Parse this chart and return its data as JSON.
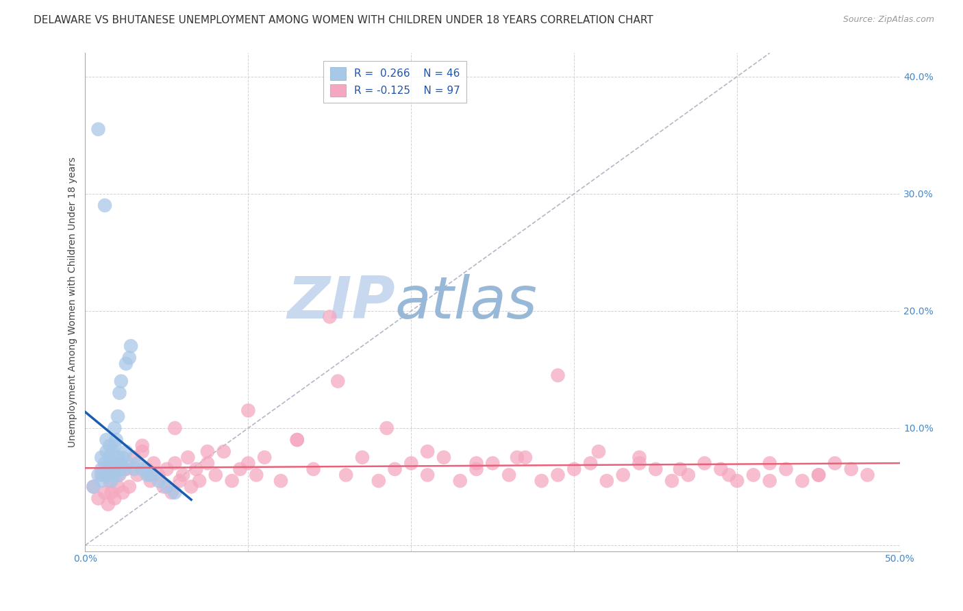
{
  "title": "DELAWARE VS BHUTANESE UNEMPLOYMENT AMONG WOMEN WITH CHILDREN UNDER 18 YEARS CORRELATION CHART",
  "source": "Source: ZipAtlas.com",
  "ylabel": "Unemployment Among Women with Children Under 18 years",
  "xlim": [
    0.0,
    0.5
  ],
  "ylim": [
    -0.005,
    0.42
  ],
  "xticks": [
    0.0,
    0.1,
    0.2,
    0.3,
    0.4,
    0.5
  ],
  "xtick_labels": [
    "0.0%",
    "",
    "",
    "",
    "",
    "50.0%"
  ],
  "yticks": [
    0.0,
    0.1,
    0.2,
    0.3,
    0.4
  ],
  "ytick_labels": [
    "",
    "10.0%",
    "20.0%",
    "30.0%",
    "40.0%"
  ],
  "delaware_R": 0.266,
  "delaware_N": 46,
  "bhutanese_R": -0.125,
  "bhutanese_N": 97,
  "delaware_color": "#a8c8e8",
  "bhutanese_color": "#f4a8c0",
  "delaware_line_color": "#1a5cb0",
  "bhutanese_line_color": "#e8607a",
  "diag_line_color": "#b0b8c8",
  "background_color": "#ffffff",
  "watermark_zip": "ZIP",
  "watermark_atlas": "atlas",
  "watermark_color_zip": "#c8d8ee",
  "watermark_color_atlas": "#98b8d8",
  "title_fontsize": 11,
  "source_fontsize": 9,
  "axis_label_fontsize": 10,
  "tick_fontsize": 10,
  "legend_fontsize": 11,
  "delaware_x": [
    0.005,
    0.008,
    0.01,
    0.01,
    0.01,
    0.012,
    0.012,
    0.013,
    0.013,
    0.014,
    0.015,
    0.015,
    0.015,
    0.016,
    0.016,
    0.017,
    0.017,
    0.018,
    0.018,
    0.018,
    0.019,
    0.019,
    0.02,
    0.02,
    0.02,
    0.021,
    0.021,
    0.022,
    0.022,
    0.023,
    0.024,
    0.025,
    0.025,
    0.026,
    0.027,
    0.028,
    0.03,
    0.032,
    0.035,
    0.038,
    0.04,
    0.045,
    0.05,
    0.055,
    0.008,
    0.012
  ],
  "delaware_y": [
    0.05,
    0.06,
    0.055,
    0.065,
    0.075,
    0.06,
    0.07,
    0.08,
    0.09,
    0.06,
    0.065,
    0.075,
    0.085,
    0.055,
    0.07,
    0.06,
    0.08,
    0.065,
    0.085,
    0.1,
    0.07,
    0.09,
    0.06,
    0.075,
    0.11,
    0.065,
    0.13,
    0.07,
    0.14,
    0.075,
    0.065,
    0.08,
    0.155,
    0.07,
    0.16,
    0.17,
    0.065,
    0.07,
    0.065,
    0.06,
    0.06,
    0.055,
    0.05,
    0.045,
    0.355,
    0.29
  ],
  "bhutanese_x": [
    0.005,
    0.008,
    0.01,
    0.012,
    0.013,
    0.014,
    0.015,
    0.015,
    0.016,
    0.017,
    0.018,
    0.019,
    0.02,
    0.021,
    0.022,
    0.023,
    0.025,
    0.027,
    0.03,
    0.032,
    0.035,
    0.038,
    0.04,
    0.042,
    0.045,
    0.048,
    0.05,
    0.053,
    0.055,
    0.058,
    0.06,
    0.063,
    0.065,
    0.068,
    0.07,
    0.075,
    0.08,
    0.085,
    0.09,
    0.095,
    0.1,
    0.105,
    0.11,
    0.12,
    0.13,
    0.14,
    0.15,
    0.16,
    0.17,
    0.18,
    0.19,
    0.2,
    0.21,
    0.22,
    0.23,
    0.24,
    0.25,
    0.26,
    0.27,
    0.28,
    0.29,
    0.3,
    0.31,
    0.32,
    0.33,
    0.34,
    0.35,
    0.36,
    0.37,
    0.38,
    0.39,
    0.4,
    0.41,
    0.42,
    0.43,
    0.44,
    0.45,
    0.46,
    0.47,
    0.48,
    0.035,
    0.055,
    0.075,
    0.1,
    0.13,
    0.155,
    0.185,
    0.21,
    0.24,
    0.265,
    0.29,
    0.315,
    0.34,
    0.365,
    0.395,
    0.42,
    0.45
  ],
  "bhutanese_y": [
    0.05,
    0.04,
    0.06,
    0.045,
    0.065,
    0.035,
    0.055,
    0.07,
    0.045,
    0.06,
    0.04,
    0.065,
    0.05,
    0.06,
    0.07,
    0.045,
    0.065,
    0.05,
    0.075,
    0.06,
    0.08,
    0.065,
    0.055,
    0.07,
    0.06,
    0.05,
    0.065,
    0.045,
    0.07,
    0.055,
    0.06,
    0.075,
    0.05,
    0.065,
    0.055,
    0.07,
    0.06,
    0.08,
    0.055,
    0.065,
    0.07,
    0.06,
    0.075,
    0.055,
    0.09,
    0.065,
    0.195,
    0.06,
    0.075,
    0.055,
    0.065,
    0.07,
    0.06,
    0.075,
    0.055,
    0.065,
    0.07,
    0.06,
    0.075,
    0.055,
    0.06,
    0.065,
    0.07,
    0.055,
    0.06,
    0.075,
    0.065,
    0.055,
    0.06,
    0.07,
    0.065,
    0.055,
    0.06,
    0.07,
    0.065,
    0.055,
    0.06,
    0.07,
    0.065,
    0.06,
    0.085,
    0.1,
    0.08,
    0.115,
    0.09,
    0.14,
    0.1,
    0.08,
    0.07,
    0.075,
    0.145,
    0.08,
    0.07,
    0.065,
    0.06,
    0.055,
    0.06
  ]
}
